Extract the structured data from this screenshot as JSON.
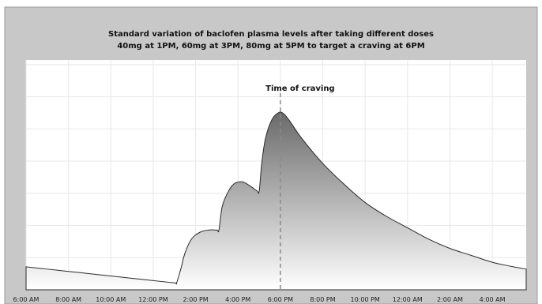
{
  "chart_data": {
    "type": "area",
    "title_line1": "Standard variation of baclofen plasma levels after taking different doses",
    "title_line2": "40mg at 1PM, 60mg at 3PM, 80mg at 5PM to target a craving at 6PM",
    "annotation": "Time of craving",
    "annotation_x": 12,
    "xlabel": "",
    "ylabel": "",
    "x_tick_labels": [
      "6:00 AM",
      "8:00 AM",
      "10:00 AM",
      "12:00 PM",
      "2:00 PM",
      "4:00 PM",
      "6:00 PM",
      "8:00 PM",
      "10:00 PM",
      "12:00 AM",
      "2:00 AM",
      "4:00 AM"
    ],
    "x_tick_hours": [
      0,
      2,
      4,
      6,
      8,
      10,
      12,
      14,
      16,
      18,
      20,
      22
    ],
    "xlim": [
      0,
      23.6
    ],
    "ylim": [
      0,
      100
    ],
    "grid": true,
    "points": [
      [
        0,
        10
      ],
      [
        1,
        9
      ],
      [
        2,
        8
      ],
      [
        3,
        7
      ],
      [
        4,
        6
      ],
      [
        5,
        5
      ],
      [
        6,
        4
      ],
      [
        7,
        3
      ],
      [
        7.1,
        3
      ],
      [
        7.3,
        9
      ],
      [
        7.5,
        16
      ],
      [
        7.8,
        22
      ],
      [
        8.2,
        25
      ],
      [
        8.6,
        26
      ],
      [
        9.0,
        26
      ],
      [
        9.1,
        26
      ],
      [
        9.25,
        36
      ],
      [
        9.5,
        42
      ],
      [
        9.8,
        46
      ],
      [
        10.2,
        47
      ],
      [
        10.6,
        45
      ],
      [
        10.9,
        43
      ],
      [
        11.0,
        43
      ],
      [
        11.12,
        55
      ],
      [
        11.3,
        66
      ],
      [
        11.6,
        74
      ],
      [
        11.9,
        77
      ],
      [
        12.1,
        77
      ],
      [
        12.4,
        74
      ],
      [
        13,
        66
      ],
      [
        14,
        55
      ],
      [
        15,
        46
      ],
      [
        16,
        38
      ],
      [
        17,
        32
      ],
      [
        18,
        27
      ],
      [
        19,
        22
      ],
      [
        20,
        18
      ],
      [
        21,
        15
      ],
      [
        22,
        12
      ],
      [
        23,
        10
      ],
      [
        23.6,
        9
      ]
    ],
    "colors": {
      "frame_bg": "#c8c8c8",
      "plot_bg": "#ffffff",
      "fill_top": "#6a6a6a",
      "fill_bottom": "#ffffff",
      "line": "#2a2a2a",
      "grid": "#e8e8e8",
      "marker": "#8a8a8a"
    }
  }
}
